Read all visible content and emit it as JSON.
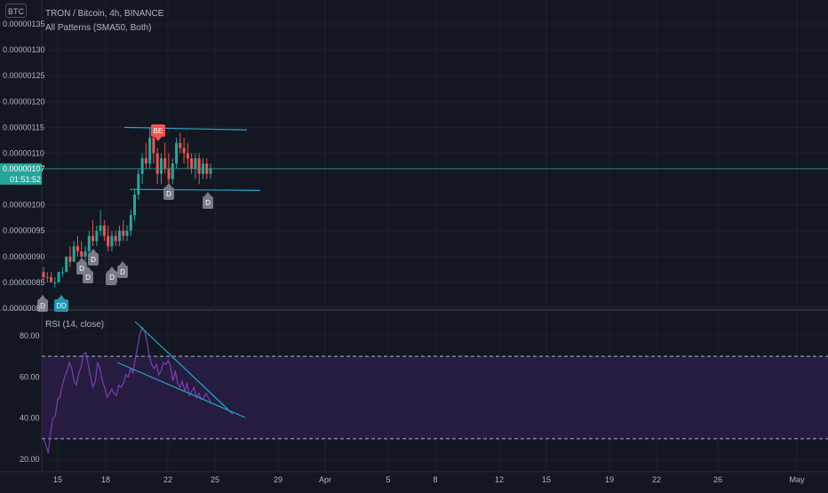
{
  "header": {
    "symbol_badge": "BTC",
    "title": "TRON / Bitcoin, 4h, BINANCE",
    "indicator": "All Patterns (SMA50, Both)"
  },
  "price_scale": {
    "ticks": [
      "0.00000135",
      "0.00000130",
      "0.00000125",
      "0.00000120",
      "0.00000115",
      "0.00000110",
      "0.00000100",
      "0.00000095",
      "0.00000090",
      "0.00000085",
      "0.00000080"
    ],
    "last_price": "0.00000107",
    "countdown": "01:51:52",
    "last_price_color": "#26a69a"
  },
  "rsi_panel": {
    "title": "RSI (14, close)",
    "ticks": [
      "80.00",
      "60.00",
      "40.00",
      "20.00"
    ],
    "upper_band": 70,
    "lower_band": 30,
    "band_fill": "#2a1d45",
    "line_color": "#7b3fb0"
  },
  "time_axis": {
    "ticks": [
      "15",
      "18",
      "22",
      "25",
      "29",
      "Apr",
      "5",
      "8",
      "12",
      "15",
      "19",
      "22",
      "26",
      "May"
    ]
  },
  "markers": [
    {
      "label": "BE",
      "color": "#ef5350"
    },
    {
      "label": "D",
      "color": "#787b86"
    },
    {
      "label": "D",
      "color": "#787b86"
    },
    {
      "label": "D",
      "color": "#787b86"
    },
    {
      "label": "D",
      "color": "#787b86"
    },
    {
      "label": "D",
      "color": "#787b86"
    },
    {
      "label": "D",
      "color": "#787b86"
    },
    {
      "label": "D",
      "color": "#787b86"
    },
    {
      "label": "D",
      "color": "#787b86"
    },
    {
      "label": "D",
      "color": "#787b86"
    },
    {
      "label": "DD",
      "color": "#2196b0"
    }
  ],
  "colors": {
    "up": "#26a69a",
    "down": "#ef5350",
    "trendline": "#22a5c4",
    "background": "#131722"
  },
  "chart_data": [
    {
      "type": "candlestick",
      "title": "TRON / Bitcoin, 4h, BINANCE",
      "ylim": [
        8e-07,
        1.35e-06
      ],
      "last_price": 1.07e-06,
      "candles": [
        [
          8.7e-07,
          8.8e-07,
          8.5e-07,
          8.6e-07
        ],
        [
          8.6e-07,
          8.7e-07,
          8.5e-07,
          8.6e-07
        ],
        [
          8.6e-07,
          8.7e-07,
          8.5e-07,
          8.5e-07
        ],
        [
          8.5e-07,
          8.6e-07,
          8.4e-07,
          8.5e-07
        ],
        [
          8.5e-07,
          8.7e-07,
          8.5e-07,
          8.7e-07
        ],
        [
          8.7e-07,
          8.8e-07,
          8.6e-07,
          8.7e-07
        ],
        [
          8.7e-07,
          9e-07,
          8.7e-07,
          9e-07
        ],
        [
          9e-07,
          9.2e-07,
          8.8e-07,
          8.9e-07
        ],
        [
          8.9e-07,
          9.3e-07,
          8.9e-07,
          9.2e-07
        ],
        [
          9.2e-07,
          9.4e-07,
          9e-07,
          9.1e-07
        ],
        [
          9.1e-07,
          9.3e-07,
          8.9e-07,
          9e-07
        ],
        [
          9e-07,
          9.2e-07,
          8.8e-07,
          9.1e-07
        ],
        [
          9.1e-07,
          9.5e-07,
          9e-07,
          9.4e-07
        ],
        [
          9.4e-07,
          9.7e-07,
          9.2e-07,
          9.3e-07
        ],
        [
          9.3e-07,
          9.6e-07,
          9.2e-07,
          9.5e-07
        ],
        [
          9.5e-07,
          9.9e-07,
          9.4e-07,
          9.6e-07
        ],
        [
          9.6e-07,
          9.7e-07,
          9.3e-07,
          9.4e-07
        ],
        [
          9.4e-07,
          9.6e-07,
          9.1e-07,
          9.2e-07
        ],
        [
          9.2e-07,
          9.5e-07,
          9.1e-07,
          9.4e-07
        ],
        [
          9.4e-07,
          9.5e-07,
          9.2e-07,
          9.3e-07
        ],
        [
          9.3e-07,
          9.6e-07,
          9.2e-07,
          9.5e-07
        ],
        [
          9.5e-07,
          9.7e-07,
          9.3e-07,
          9.4e-07
        ],
        [
          9.4e-07,
          9.6e-07,
          9.3e-07,
          9.5e-07
        ],
        [
          9.5e-07,
          9.9e-07,
          9.4e-07,
          9.8e-07
        ],
        [
          9.8e-07,
          1.03e-06,
          9.7e-07,
          1.02e-06
        ],
        [
          1.02e-06,
          1.07e-06,
          1.01e-06,
          1.06e-06
        ],
        [
          1.06e-06,
          1.1e-06,
          1.04e-06,
          1.09e-06
        ],
        [
          1.09e-06,
          1.12e-06,
          1.07e-06,
          1.08e-06
        ],
        [
          1.08e-06,
          1.15e-06,
          1.07e-06,
          1.13e-06
        ],
        [
          1.13e-06,
          1.14e-06,
          1.08e-06,
          1.1e-06
        ],
        [
          1.1e-06,
          1.11e-06,
          1.04e-06,
          1.06e-06
        ],
        [
          1.06e-06,
          1.1e-06,
          1.04e-06,
          1.09e-06
        ],
        [
          1.09e-06,
          1.12e-06,
          1.06e-06,
          1.07e-06
        ],
        [
          1.07e-06,
          1.1e-06,
          1.03e-06,
          1.05e-06
        ],
        [
          1.05e-06,
          1.09e-06,
          1.04e-06,
          1.08e-06
        ],
        [
          1.08e-06,
          1.13e-06,
          1.07e-06,
          1.12e-06
        ],
        [
          1.12e-06,
          1.14e-06,
          1.1e-06,
          1.11e-06
        ],
        [
          1.11e-06,
          1.13e-06,
          1.08e-06,
          1.1e-06
        ],
        [
          1.1e-06,
          1.12e-06,
          1.07e-06,
          1.09e-06
        ],
        [
          1.09e-06,
          1.1e-06,
          1.06e-06,
          1.07e-06
        ],
        [
          1.07e-06,
          1.1e-06,
          1.05e-06,
          1.09e-06
        ],
        [
          1.09e-06,
          1.1e-06,
          1.04e-06,
          1.06e-06
        ],
        [
          1.06e-06,
          1.09e-06,
          1.05e-06,
          1.08e-06
        ],
        [
          1.08e-06,
          1.09e-06,
          1.05e-06,
          1.06e-06
        ],
        [
          1.06e-06,
          1.08e-06,
          1.05e-06,
          1.07e-06
        ]
      ],
      "trendlines": [
        {
          "from": [
            1.15e-06
          ],
          "to": [
            1.145e-06
          ]
        },
        {
          "from": [
            1.03e-06
          ],
          "to": [
            1.028e-06
          ]
        }
      ]
    },
    {
      "type": "line",
      "title": "RSI (14, close)",
      "ylim": [
        18,
        88
      ],
      "bands": [
        70,
        30
      ],
      "values": [
        30,
        27,
        23,
        33,
        40,
        41,
        49,
        50,
        56,
        60,
        63,
        67,
        64,
        58,
        56,
        62,
        65,
        71,
        72,
        66,
        60,
        55,
        58,
        67,
        64,
        58,
        55,
        50,
        52,
        54,
        52,
        51,
        56,
        55,
        57,
        61,
        60,
        64,
        62,
        69,
        75,
        81,
        84,
        82,
        77,
        70,
        66,
        64,
        66,
        61,
        63,
        67,
        66,
        68,
        65,
        58,
        63,
        57,
        55,
        58,
        53,
        57,
        51,
        53,
        55,
        50,
        52,
        49,
        50,
        52,
        50,
        48
      ]
    }
  ]
}
